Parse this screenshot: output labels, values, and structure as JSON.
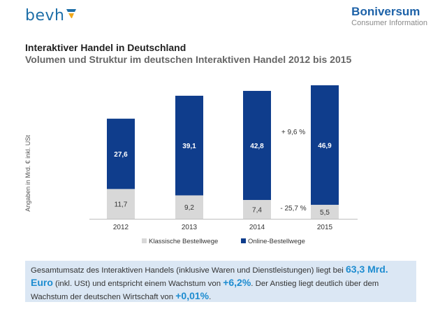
{
  "header": {
    "left_logo_text": "bevh",
    "right_logo_name": "Boniversum",
    "right_logo_sub": "Consumer Information"
  },
  "title": "Interaktiver Handel in Deutschland",
  "subtitle": "Volumen und Struktur im deutschen Interaktiven Handel 2012 bis 2015",
  "colors": {
    "online": "#0f3d8c",
    "classic": "#d8d8d8",
    "accent": "#1d8cd0"
  },
  "chart_data": {
    "type": "bar",
    "stacked": true,
    "categories": [
      "2012",
      "2013",
      "2014",
      "2015"
    ],
    "series": [
      {
        "name": "Klassische Bestellwege",
        "values": [
          11.7,
          9.2,
          7.4,
          5.5
        ],
        "labels": [
          "11,7",
          "9,2",
          "7,4",
          "5,5"
        ]
      },
      {
        "name": "Online-Bestellwege",
        "values": [
          27.6,
          39.1,
          42.8,
          46.9
        ],
        "labels": [
          "27,6",
          "39,1",
          "42,8",
          "46,9"
        ]
      }
    ],
    "ylabel": "Angaben in Mrd. € inkl. USt",
    "ylim": [
      0,
      52.4
    ],
    "legend_position": "bottom",
    "annotations": [
      "+ 9,6 %",
      "- 25,7 %"
    ]
  },
  "summary": {
    "p1": "Gesamtumsatz des Interaktiven Handels (inklusive Waren und Dienstleistungen) liegt bei ",
    "h1": "63,3 Mrd. Euro",
    "p2": " (inkl. USt) und entspricht einem Wachstum von ",
    "h2": "+6,2%",
    "p3": ".  Der Anstieg liegt deutlich über dem Wachstum der deutschen Wirtschaft von ",
    "h3": "+0,01%",
    "p4": "."
  }
}
